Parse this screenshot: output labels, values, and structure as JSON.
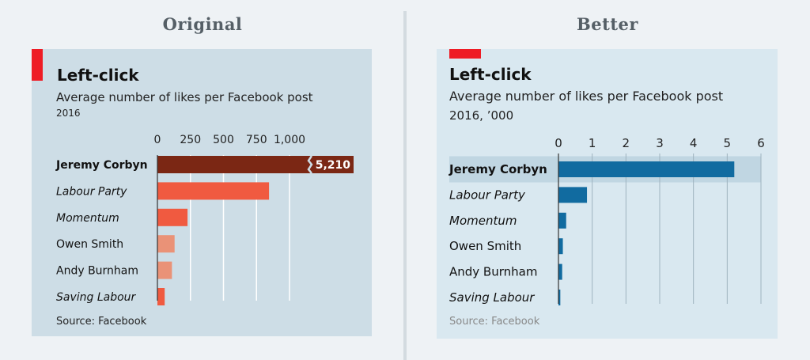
{
  "headers": {
    "left": "Original",
    "right": "Better"
  },
  "chart_data": [
    {
      "type": "bar",
      "orientation": "horizontal",
      "title": "Left-click",
      "subtitle": "Average number of likes per Facebook post",
      "subtitle2": "2016",
      "source": "Source: Facebook",
      "categories": [
        "Jeremy Corbyn",
        "Labour Party",
        "Momentum",
        "Owen Smith",
        "Andy Burnham",
        "Saving Labour"
      ],
      "category_styles": [
        "bold",
        "italic",
        "italic",
        "normal",
        "normal",
        "italic"
      ],
      "values": [
        5210,
        845,
        228,
        130,
        110,
        55
      ],
      "xlim": [
        0,
        1000
      ],
      "xticks": [
        0,
        250,
        500,
        750,
        1000
      ],
      "xtick_labels": [
        "0",
        "250",
        "500",
        "750",
        "1,000"
      ],
      "broken_bar_label": "5,210",
      "axis_break": true,
      "grid": true,
      "colors": [
        "#7b2714",
        "#f05a40",
        "#f05a40",
        "#ea9277",
        "#ea9277",
        "#f05a40"
      ]
    },
    {
      "type": "bar",
      "orientation": "horizontal",
      "title": "Left-click",
      "subtitle": "Average number of likes per Facebook post",
      "subtitle2": "2016, ’000",
      "source": "Source: Facebook",
      "categories": [
        "Jeremy Corbyn",
        "Labour Party",
        "Momentum",
        "Owen Smith",
        "Andy Burnham",
        "Saving Labour"
      ],
      "category_styles": [
        "bold",
        "italic",
        "italic",
        "normal",
        "normal",
        "italic"
      ],
      "values": [
        5.21,
        0.845,
        0.228,
        0.13,
        0.11,
        0.055
      ],
      "xlim": [
        0,
        6
      ],
      "xticks": [
        0,
        1,
        2,
        3,
        4,
        5,
        6
      ],
      "xtick_labels": [
        "0",
        "1",
        "2",
        "3",
        "4",
        "5",
        "6"
      ],
      "highlight": "Jeremy Corbyn",
      "grid": true,
      "colors": [
        "#116ba0"
      ]
    }
  ]
}
